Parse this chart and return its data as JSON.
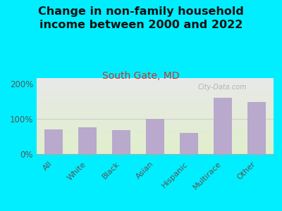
{
  "title": "Change in non-family household\nincome between 2000 and 2022",
  "subtitle": "South Gate, MD",
  "categories": [
    "All",
    "White",
    "Black",
    "Asian",
    "Hispanic",
    "Multirace",
    "Other"
  ],
  "values": [
    70,
    75,
    68,
    100,
    60,
    160,
    148
  ],
  "bar_color": "#b9a9cc",
  "background_outer": "#00eeff",
  "background_inner_top": "#e8ede0",
  "background_inner_bottom": "#f0f5e8",
  "title_fontsize": 11.5,
  "subtitle_fontsize": 10,
  "subtitle_color": "#cc3333",
  "title_color": "#111111",
  "tick_label_color": "#555555",
  "yticks": [
    0,
    100,
    200
  ],
  "ylim": [
    0,
    215
  ],
  "watermark": "City-Data.com"
}
